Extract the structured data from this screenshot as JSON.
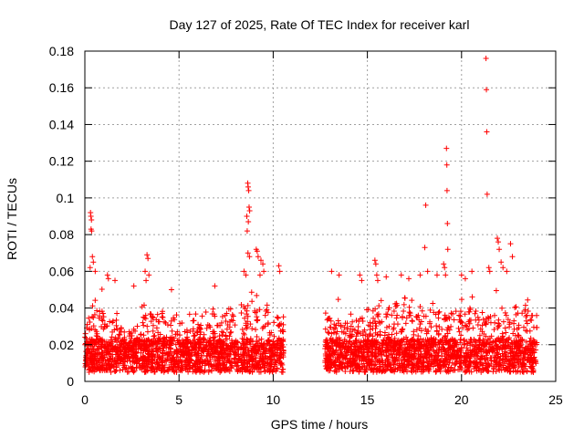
{
  "chart_data": {
    "type": "scatter",
    "title": "Day 127 of 2025, Rate Of TEC Index for receiver karl",
    "xlabel": "GPS time / hours",
    "ylabel": "ROTI / TECUs",
    "xlim": [
      0,
      25
    ],
    "ylim": [
      0,
      0.18
    ],
    "xticks": [
      0,
      5,
      10,
      15,
      20,
      25
    ],
    "xtick_labels": [
      "0",
      "5",
      "10",
      "15",
      "20",
      "25"
    ],
    "yticks": [
      0,
      0.02,
      0.04,
      0.06,
      0.08,
      0.1,
      0.12,
      0.14,
      0.16,
      0.18
    ],
    "ytick_labels": [
      "0",
      "0.02",
      "0.04",
      "0.06",
      "0.08",
      "0.1",
      "0.12",
      "0.14",
      "0.16",
      "0.18"
    ],
    "grid": true,
    "marker": "+",
    "color": "#ff0000",
    "coverage_segments": [
      [
        0.0,
        10.55
      ],
      [
        12.75,
        24.0
      ]
    ],
    "density_profile": {
      "hours": [
        0,
        0.5,
        1,
        1.5,
        2,
        2.5,
        3,
        3.5,
        4,
        4.5,
        5,
        5.5,
        6,
        6.5,
        7,
        7.5,
        8,
        8.5,
        9,
        9.5,
        10,
        10.5,
        13,
        13.5,
        14,
        14.5,
        15,
        15.5,
        16,
        16.5,
        17,
        17.5,
        18,
        18.5,
        19,
        19.5,
        20,
        20.5,
        21,
        21.5,
        22,
        22.5,
        23,
        23.5,
        24
      ],
      "upper_roti": [
        0.035,
        0.06,
        0.05,
        0.045,
        0.03,
        0.028,
        0.04,
        0.055,
        0.04,
        0.035,
        0.04,
        0.04,
        0.038,
        0.04,
        0.045,
        0.045,
        0.048,
        0.055,
        0.05,
        0.05,
        0.045,
        0.04,
        0.042,
        0.045,
        0.04,
        0.04,
        0.05,
        0.045,
        0.045,
        0.045,
        0.05,
        0.045,
        0.045,
        0.05,
        0.05,
        0.045,
        0.045,
        0.05,
        0.045,
        0.05,
        0.05,
        0.045,
        0.045,
        0.05,
        0.04
      ]
    },
    "series": [
      {
        "name": "outliers",
        "points": [
          [
            0.3,
            0.092
          ],
          [
            0.32,
            0.09
          ],
          [
            0.35,
            0.088
          ],
          [
            0.33,
            0.083
          ],
          [
            0.36,
            0.082
          ],
          [
            0.4,
            0.068
          ],
          [
            0.45,
            0.065
          ],
          [
            0.28,
            0.062
          ],
          [
            0.55,
            0.06
          ],
          [
            1.2,
            0.058
          ],
          [
            1.25,
            0.056
          ],
          [
            1.6,
            0.055
          ],
          [
            3.3,
            0.069
          ],
          [
            3.35,
            0.067
          ],
          [
            3.2,
            0.06
          ],
          [
            3.4,
            0.058
          ],
          [
            3.25,
            0.055
          ],
          [
            2.6,
            0.052
          ],
          [
            4.6,
            0.05
          ],
          [
            6.9,
            0.052
          ],
          [
            8.45,
            0.06
          ],
          [
            8.55,
            0.058
          ],
          [
            8.65,
            0.108
          ],
          [
            8.67,
            0.106
          ],
          [
            8.7,
            0.104
          ],
          [
            8.72,
            0.095
          ],
          [
            8.75,
            0.093
          ],
          [
            8.6,
            0.09
          ],
          [
            8.68,
            0.087
          ],
          [
            8.62,
            0.082
          ],
          [
            8.66,
            0.07
          ],
          [
            8.74,
            0.068
          ],
          [
            9.1,
            0.072
          ],
          [
            9.15,
            0.071
          ],
          [
            9.2,
            0.068
          ],
          [
            9.35,
            0.066
          ],
          [
            9.45,
            0.064
          ],
          [
            9.5,
            0.06
          ],
          [
            9.3,
            0.058
          ],
          [
            10.3,
            0.063
          ],
          [
            10.35,
            0.06
          ],
          [
            13.1,
            0.06
          ],
          [
            13.5,
            0.058
          ],
          [
            14.6,
            0.058
          ],
          [
            14.7,
            0.055
          ],
          [
            15.4,
            0.066
          ],
          [
            15.45,
            0.064
          ],
          [
            15.5,
            0.058
          ],
          [
            15.55,
            0.055
          ],
          [
            16.0,
            0.057
          ],
          [
            16.8,
            0.058
          ],
          [
            17.2,
            0.056
          ],
          [
            17.8,
            0.058
          ],
          [
            18.1,
            0.096
          ],
          [
            18.05,
            0.073
          ],
          [
            18.2,
            0.06
          ],
          [
            18.7,
            0.058
          ],
          [
            19.05,
            0.064
          ],
          [
            19.1,
            0.062
          ],
          [
            19.15,
            0.058
          ],
          [
            19.2,
            0.127
          ],
          [
            19.22,
            0.118
          ],
          [
            19.23,
            0.104
          ],
          [
            19.25,
            0.086
          ],
          [
            19.27,
            0.072
          ],
          [
            20.0,
            0.058
          ],
          [
            20.2,
            0.056
          ],
          [
            20.55,
            0.06
          ],
          [
            21.3,
            0.176
          ],
          [
            21.32,
            0.159
          ],
          [
            21.34,
            0.136
          ],
          [
            21.36,
            0.102
          ],
          [
            21.45,
            0.062
          ],
          [
            21.5,
            0.06
          ],
          [
            21.9,
            0.078
          ],
          [
            21.95,
            0.076
          ],
          [
            22.0,
            0.072
          ],
          [
            22.1,
            0.065
          ],
          [
            22.2,
            0.062
          ],
          [
            22.6,
            0.075
          ],
          [
            22.7,
            0.068
          ],
          [
            22.4,
            0.06
          ]
        ]
      }
    ]
  }
}
